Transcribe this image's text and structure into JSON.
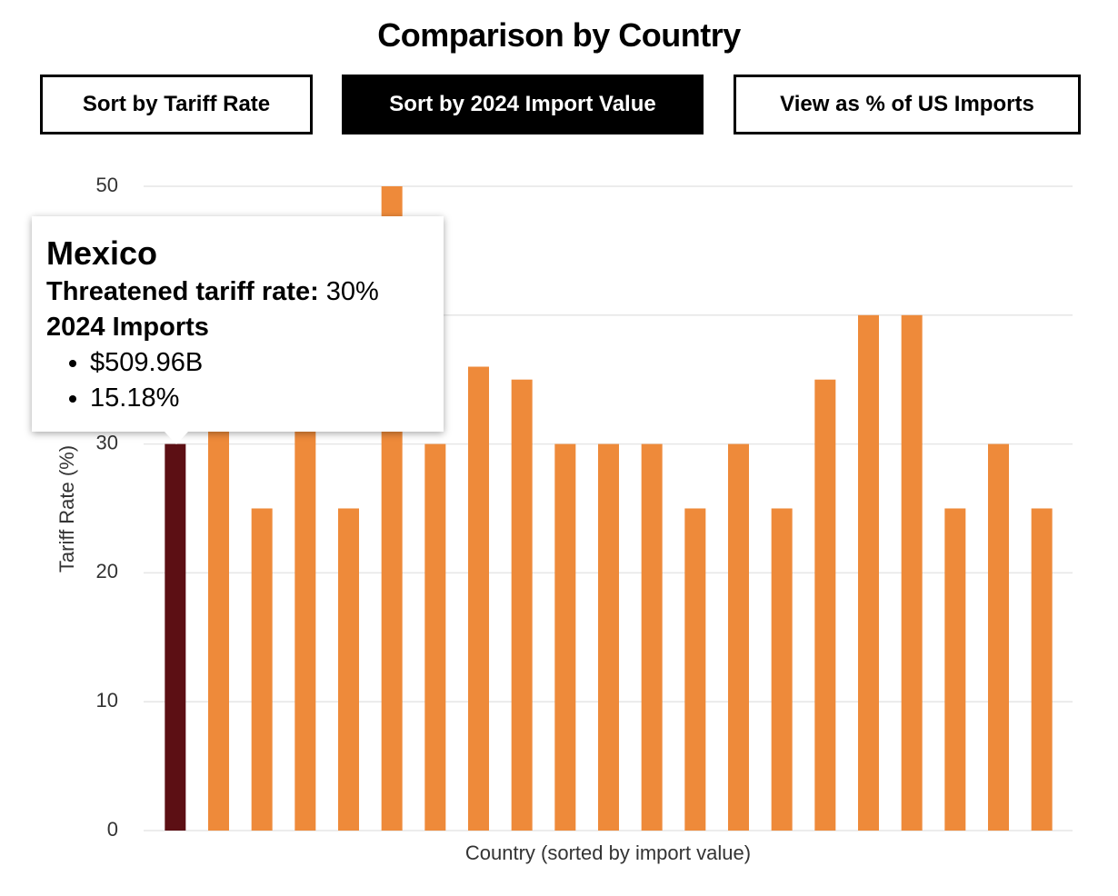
{
  "title": "Comparison by Country",
  "buttons": [
    "Sort by Tariff Rate",
    "Sort by 2024 Import Value",
    "View as % of US Imports"
  ],
  "active_button": 1,
  "chart_data": {
    "type": "bar",
    "categories": [
      null,
      null,
      null,
      null,
      null,
      null,
      null,
      null,
      null,
      null,
      null,
      null,
      null,
      null,
      null,
      null,
      null,
      null,
      null,
      null,
      null
    ],
    "values": [
      30,
      35,
      25,
      35,
      25,
      50,
      30,
      36,
      35,
      30,
      30,
      30,
      25,
      30,
      25,
      35,
      40,
      40,
      25,
      30,
      25
    ],
    "color": "#ee8a3a",
    "highlight_color": "#5c0f14",
    "highlight": 0,
    "ylim": [
      0,
      50
    ],
    "yticks": [
      0,
      10,
      20,
      30,
      40,
      50
    ],
    "grid": true,
    "y_label": "Tariff Rate (%)",
    "x_label": "Country (sorted by import value)"
  },
  "tooltip": {
    "name": "Mexico",
    "rate_label": "Threatened tariff rate:",
    "rate": "30%",
    "imports_label": "2024 Imports",
    "items": [
      "$509.96B",
      "15.18%"
    ]
  }
}
